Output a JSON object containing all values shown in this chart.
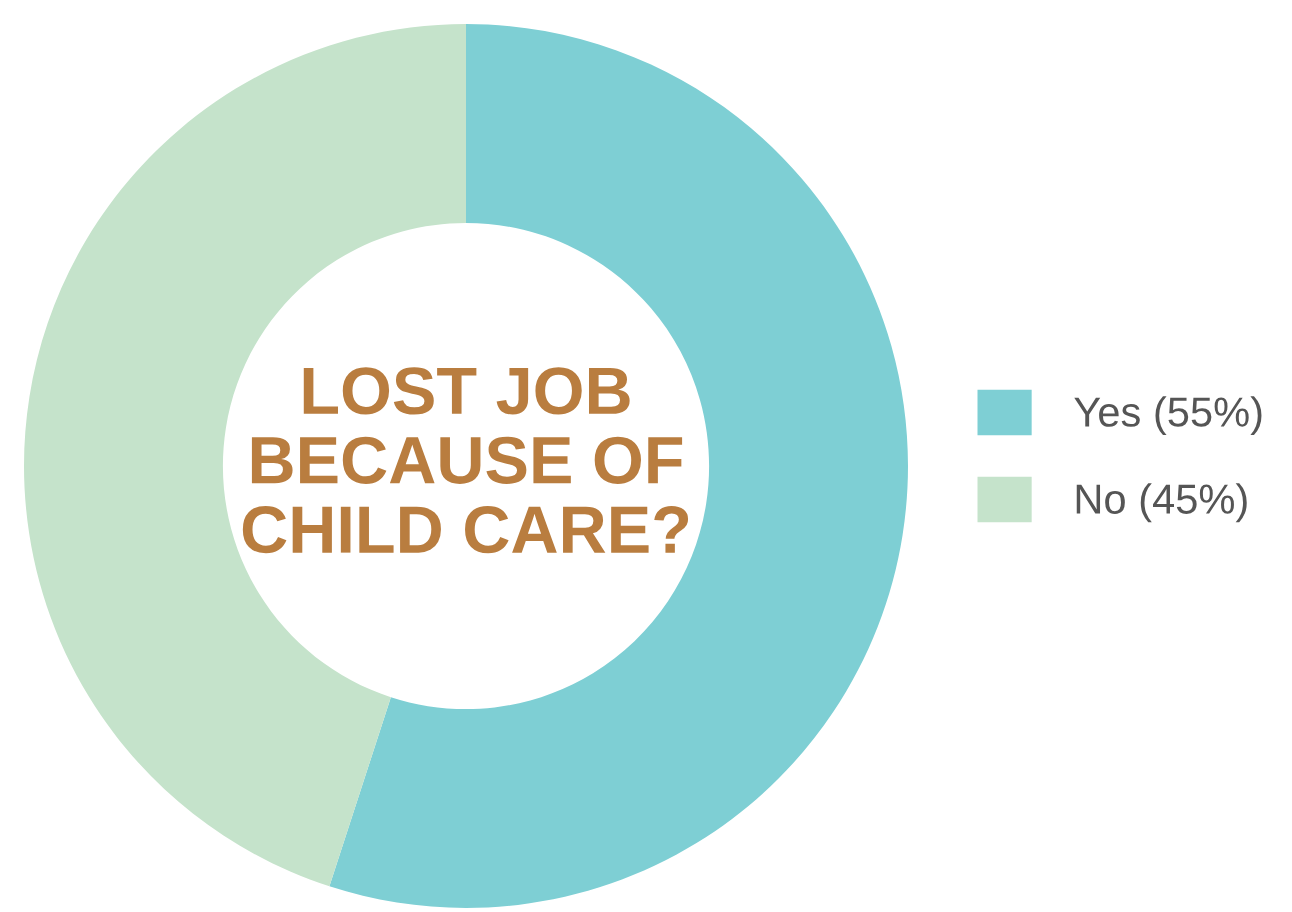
{
  "chart_data": {
    "type": "donut",
    "title": "LOST JOB\nBECAUSE OF\nCHILD CARE?",
    "categories": [
      "Yes (55%)",
      "No (45%)"
    ],
    "values": [
      55,
      45
    ],
    "colors": [
      "#7ecfd4",
      "#c5e3cb"
    ],
    "legend": "right"
  }
}
